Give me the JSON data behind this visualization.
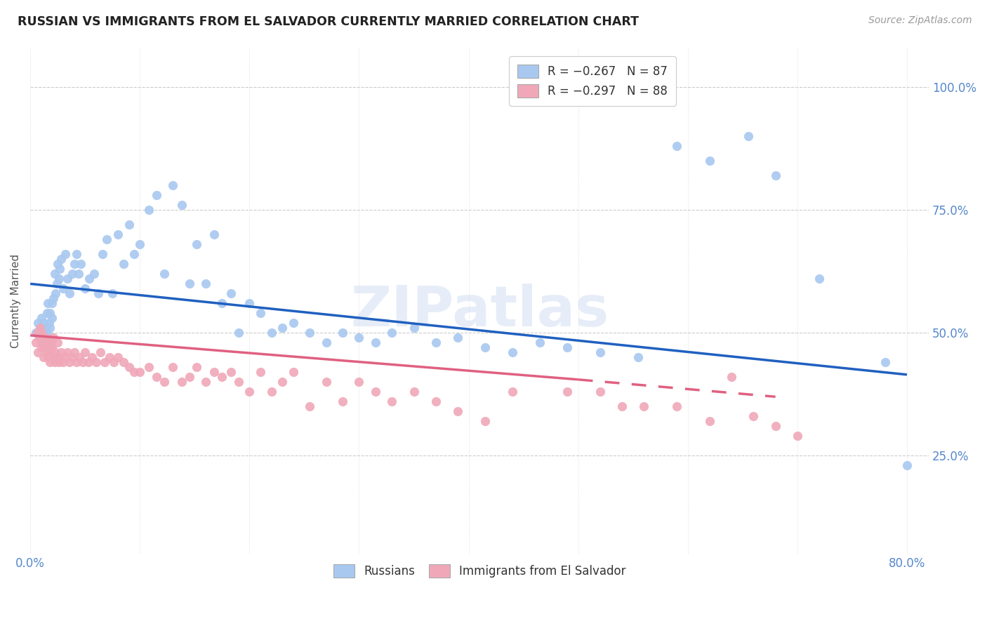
{
  "title": "RUSSIAN VS IMMIGRANTS FROM EL SALVADOR CURRENTLY MARRIED CORRELATION CHART",
  "source": "Source: ZipAtlas.com",
  "legend_label_russians": "Russians",
  "legend_label_elsalvador": "Immigrants from El Salvador",
  "watermark": "ZIPatlas",
  "russian_color": "#a8c8f0",
  "elsalvador_color": "#f0a8b8",
  "russian_line_color": "#2060c0",
  "elsalvador_line_color": "#e06080",
  "background_color": "#ffffff",
  "grid_color": "#cccccc",
  "title_color": "#222222",
  "axis_label_color": "#5588cc",
  "tick_label_color": "#5588cc",
  "ylabel_color": "#555555",
  "x_min": 0.0,
  "x_max": 0.82,
  "y_min": 0.05,
  "y_max": 1.08,
  "russian_line_x0": 0.0,
  "russian_line_y0": 0.6,
  "russian_line_x1": 0.8,
  "russian_line_y1": 0.415,
  "elsalvador_line_x0": 0.0,
  "elsalvador_line_y0": 0.495,
  "elsalvador_line_x1": 0.68,
  "elsalvador_line_y1": 0.37,
  "elsalvador_line_solid_x1": 0.5,
  "elsalvador_line_solid_y1": 0.405,
  "russian_scatter_x": [
    0.005,
    0.007,
    0.008,
    0.009,
    0.01,
    0.01,
    0.011,
    0.012,
    0.013,
    0.014,
    0.015,
    0.015,
    0.016,
    0.017,
    0.018,
    0.018,
    0.019,
    0.02,
    0.02,
    0.021,
    0.022,
    0.023,
    0.024,
    0.025,
    0.026,
    0.027,
    0.028,
    0.03,
    0.032,
    0.034,
    0.036,
    0.038,
    0.04,
    0.042,
    0.044,
    0.046,
    0.05,
    0.054,
    0.058,
    0.062,
    0.066,
    0.07,
    0.075,
    0.08,
    0.085,
    0.09,
    0.095,
    0.1,
    0.108,
    0.115,
    0.122,
    0.13,
    0.138,
    0.145,
    0.152,
    0.16,
    0.168,
    0.175,
    0.183,
    0.19,
    0.2,
    0.21,
    0.22,
    0.23,
    0.24,
    0.255,
    0.27,
    0.285,
    0.3,
    0.315,
    0.33,
    0.35,
    0.37,
    0.39,
    0.415,
    0.44,
    0.465,
    0.49,
    0.52,
    0.555,
    0.59,
    0.62,
    0.655,
    0.68,
    0.72,
    0.78,
    0.8
  ],
  "russian_scatter_y": [
    0.5,
    0.52,
    0.49,
    0.51,
    0.48,
    0.53,
    0.5,
    0.52,
    0.51,
    0.49,
    0.54,
    0.5,
    0.56,
    0.52,
    0.51,
    0.54,
    0.48,
    0.53,
    0.56,
    0.57,
    0.62,
    0.58,
    0.6,
    0.64,
    0.61,
    0.63,
    0.65,
    0.59,
    0.66,
    0.61,
    0.58,
    0.62,
    0.64,
    0.66,
    0.62,
    0.64,
    0.59,
    0.61,
    0.62,
    0.58,
    0.66,
    0.69,
    0.58,
    0.7,
    0.64,
    0.72,
    0.66,
    0.68,
    0.75,
    0.78,
    0.62,
    0.8,
    0.76,
    0.6,
    0.68,
    0.6,
    0.7,
    0.56,
    0.58,
    0.5,
    0.56,
    0.54,
    0.5,
    0.51,
    0.52,
    0.5,
    0.48,
    0.5,
    0.49,
    0.48,
    0.5,
    0.51,
    0.48,
    0.49,
    0.47,
    0.46,
    0.48,
    0.47,
    0.46,
    0.45,
    0.88,
    0.85,
    0.9,
    0.82,
    0.61,
    0.44,
    0.23
  ],
  "elsalvador_scatter_x": [
    0.005,
    0.006,
    0.007,
    0.008,
    0.009,
    0.01,
    0.01,
    0.011,
    0.012,
    0.013,
    0.014,
    0.015,
    0.015,
    0.016,
    0.017,
    0.018,
    0.018,
    0.019,
    0.02,
    0.02,
    0.021,
    0.022,
    0.023,
    0.024,
    0.025,
    0.026,
    0.027,
    0.028,
    0.03,
    0.032,
    0.034,
    0.036,
    0.038,
    0.04,
    0.042,
    0.045,
    0.048,
    0.05,
    0.053,
    0.056,
    0.06,
    0.064,
    0.068,
    0.072,
    0.076,
    0.08,
    0.085,
    0.09,
    0.095,
    0.1,
    0.108,
    0.115,
    0.122,
    0.13,
    0.138,
    0.145,
    0.152,
    0.16,
    0.168,
    0.175,
    0.183,
    0.19,
    0.2,
    0.21,
    0.22,
    0.23,
    0.24,
    0.255,
    0.27,
    0.285,
    0.3,
    0.315,
    0.33,
    0.35,
    0.37,
    0.39,
    0.415,
    0.44,
    0.49,
    0.52,
    0.54,
    0.56,
    0.59,
    0.62,
    0.64,
    0.66,
    0.68,
    0.7
  ],
  "elsalvador_scatter_y": [
    0.48,
    0.5,
    0.46,
    0.49,
    0.51,
    0.47,
    0.5,
    0.48,
    0.45,
    0.47,
    0.49,
    0.46,
    0.48,
    0.45,
    0.47,
    0.44,
    0.46,
    0.48,
    0.45,
    0.47,
    0.49,
    0.44,
    0.46,
    0.45,
    0.48,
    0.44,
    0.45,
    0.46,
    0.44,
    0.45,
    0.46,
    0.44,
    0.45,
    0.46,
    0.44,
    0.45,
    0.44,
    0.46,
    0.44,
    0.45,
    0.44,
    0.46,
    0.44,
    0.45,
    0.44,
    0.45,
    0.44,
    0.43,
    0.42,
    0.42,
    0.43,
    0.41,
    0.4,
    0.43,
    0.4,
    0.41,
    0.43,
    0.4,
    0.42,
    0.41,
    0.42,
    0.4,
    0.38,
    0.42,
    0.38,
    0.4,
    0.42,
    0.35,
    0.4,
    0.36,
    0.4,
    0.38,
    0.36,
    0.38,
    0.36,
    0.34,
    0.32,
    0.38,
    0.38,
    0.38,
    0.35,
    0.35,
    0.35,
    0.32,
    0.41,
    0.33,
    0.31,
    0.29
  ]
}
